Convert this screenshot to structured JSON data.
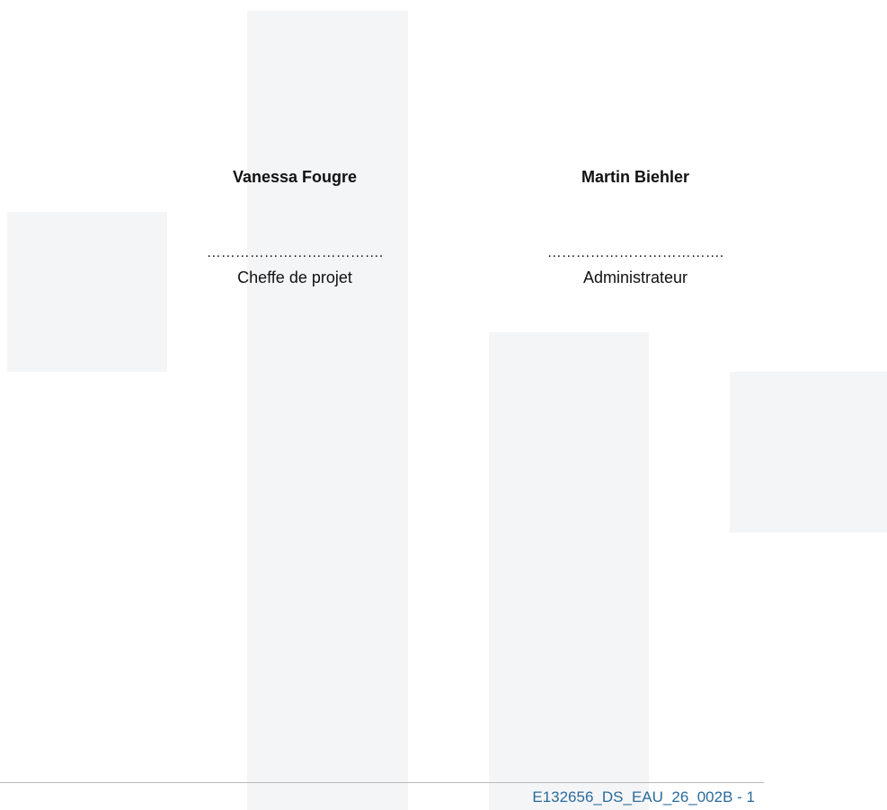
{
  "signatures": [
    {
      "name": "Vanessa Fougre",
      "dots": "……………………………….",
      "role": "Cheffe de projet"
    },
    {
      "name": "Martin Biehler",
      "dots": "……………………………….",
      "role": "Administrateur"
    }
  ],
  "footer": {
    "reference": "E132656_DS_EAU_26_002B - 1"
  }
}
